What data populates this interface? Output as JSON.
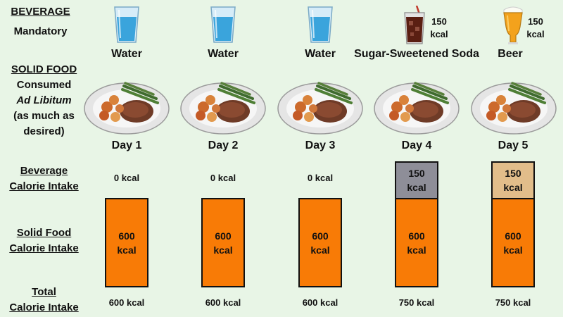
{
  "left_labels": {
    "beverage_heading": "BEVERAGE",
    "beverage_sub": "Mandatory",
    "solid_heading": "SOLID FOOD",
    "solid_line1": "Consumed",
    "solid_line2": "Ad Libitum",
    "solid_line3": "(as much as",
    "solid_line4": "desired)",
    "bev_cal_line1": "Beverage",
    "bev_cal_line2": "Calorie Intake",
    "solid_cal_line1": "Solid Food",
    "solid_cal_line2": "Calorie Intake",
    "total_line1": "Total",
    "total_line2": "Calorie Intake"
  },
  "days": [
    {
      "day": "Day 1",
      "beverage": "Water",
      "beverage_icon": "water-glass-icon",
      "beverage_kcal": "0 kcal",
      "solid_value": "600",
      "solid_unit": "kcal",
      "total": "600 kcal"
    },
    {
      "day": "Day 2",
      "beverage": "Water",
      "beverage_icon": "water-glass-icon",
      "beverage_kcal": "0 kcal",
      "solid_value": "600",
      "solid_unit": "kcal",
      "total": "600 kcal"
    },
    {
      "day": "Day 3",
      "beverage": "Water",
      "beverage_icon": "water-glass-icon",
      "beverage_kcal": "0 kcal",
      "solid_value": "600",
      "solid_unit": "kcal",
      "total": "600 kcal"
    },
    {
      "day": "Day 4",
      "beverage": "Sugar-Sweetened Soda",
      "beverage_icon": "soda-glass-icon",
      "icon_kcal_value": "150",
      "icon_kcal_unit": "kcal",
      "beverage_bar_value": "150",
      "beverage_bar_unit": "kcal",
      "solid_value": "600",
      "solid_unit": "kcal",
      "total": "750 kcal"
    },
    {
      "day": "Day 5",
      "beverage": "Beer",
      "beverage_icon": "beer-glass-icon",
      "icon_kcal_value": "150",
      "icon_kcal_unit": "kcal",
      "beverage_bar_value": "150",
      "beverage_bar_unit": "kcal",
      "solid_value": "600",
      "solid_unit": "kcal",
      "total": "750 kcal"
    }
  ],
  "colors": {
    "background": "#e8f5e6",
    "solid_bar": "#f87b06",
    "soda_bar": "#8e8e98",
    "beer_bar": "#e2bd8a"
  }
}
